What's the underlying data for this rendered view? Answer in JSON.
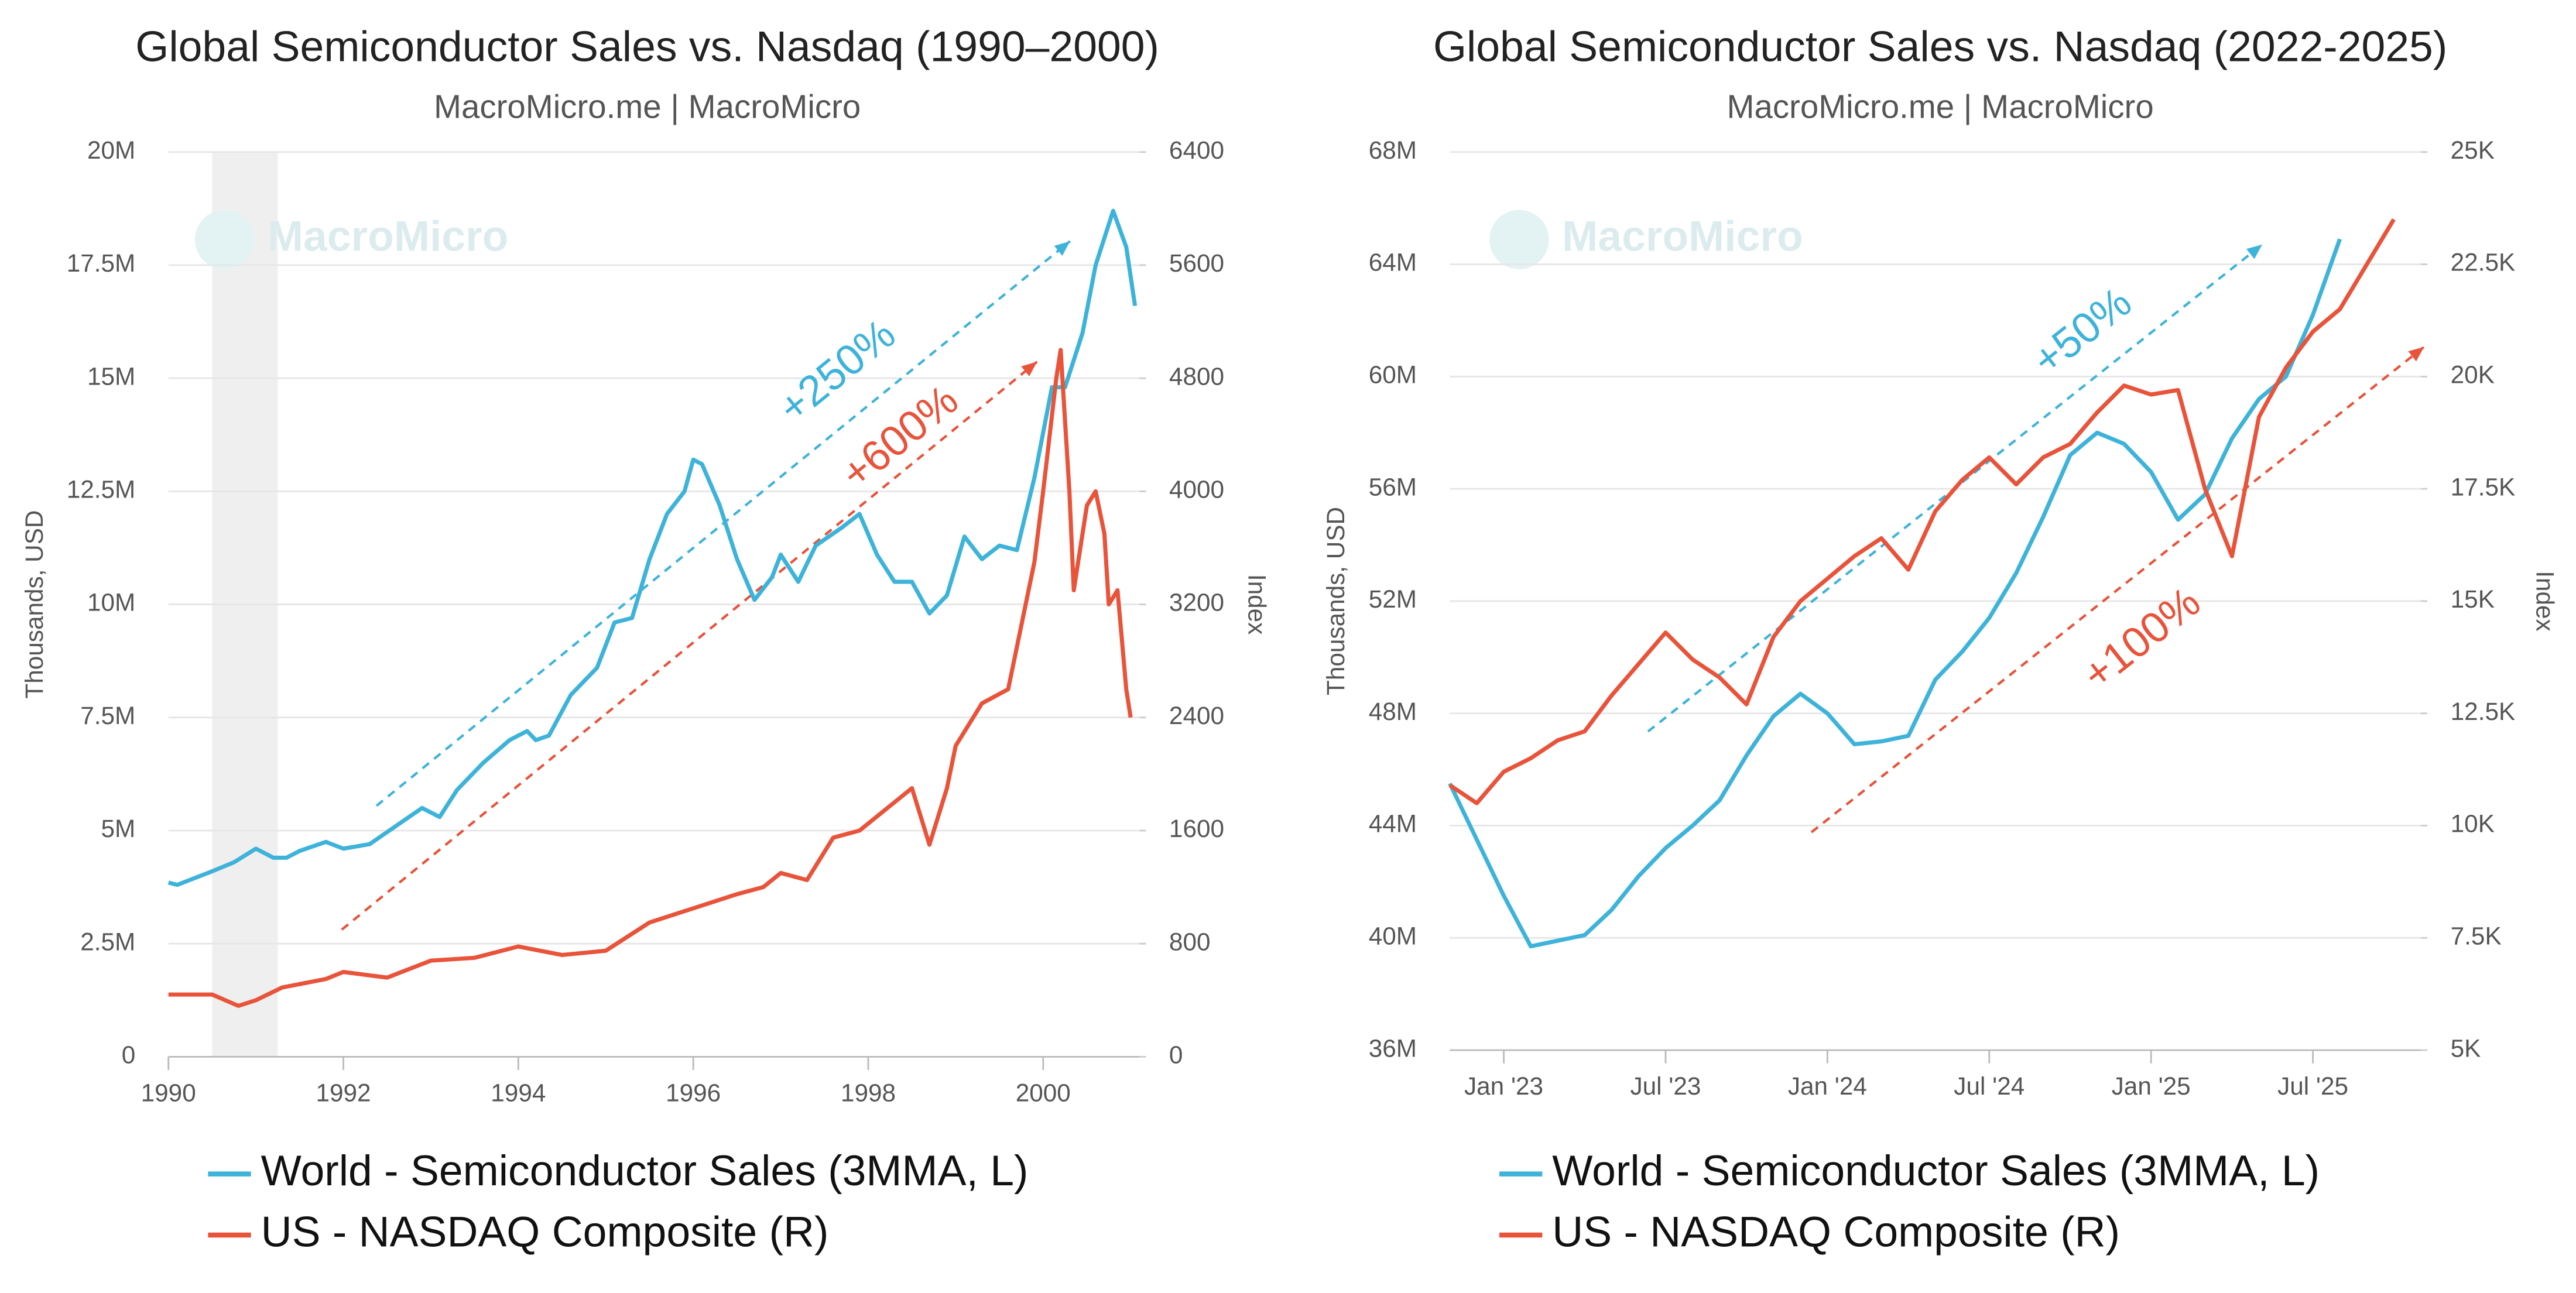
{
  "chart_data": [
    {
      "type": "line",
      "title": "Global Semiconductor Sales vs. Nasdaq (1990–2000)",
      "subtitle": "MacroMicro.me | MacroMicro",
      "watermark": "MacroMicro",
      "y_label": "Thousands, USD",
      "y2_label": "Index",
      "xlim": [
        1990,
        2001.1
      ],
      "xticks": [
        1990,
        1992,
        1994,
        1996,
        1998,
        2000
      ],
      "ylim": [
        0,
        20000000
      ],
      "yticks": [
        0,
        {
          "value": 2500000,
          "label": "2.5M"
        },
        {
          "value": 5000000,
          "label": "5M"
        },
        {
          "value": 7500000,
          "label": "7.5M"
        },
        {
          "value": 10000000,
          "label": "10M"
        },
        {
          "value": 12500000,
          "label": "12.5M"
        },
        {
          "value": 15000000,
          "label": "15M"
        },
        {
          "value": 17500000,
          "label": "17.5M"
        },
        {
          "value": 20000000,
          "label": "20M"
        }
      ],
      "y2lim": [
        0,
        6400
      ],
      "y2ticks": [
        0,
        800,
        1600,
        2400,
        3200,
        4000,
        4800,
        5600,
        6400
      ],
      "grid": true,
      "shaded_x": [
        1990.5,
        1991.25
      ],
      "series": [
        {
          "name": "World - Semiconductor Sales (3MMA, L)",
          "color": "#3eb3da",
          "x": [
            1990.0,
            1990.1,
            1990.5,
            1990.75,
            1991.0,
            1991.2,
            1991.35,
            1991.5,
            1991.8,
            1992.0,
            1992.3,
            1992.6,
            1992.9,
            1993.1,
            1993.3,
            1993.6,
            1993.9,
            1994.1,
            1994.2,
            1994.35,
            1994.6,
            1994.9,
            1995.1,
            1995.3,
            1995.5,
            1995.7,
            1995.9,
            1996.0,
            1996.1,
            1996.3,
            1996.5,
            1996.7,
            1996.9,
            1997.0,
            1997.2,
            1997.4,
            1997.7,
            1997.9,
            1998.1,
            1998.3,
            1998.5,
            1998.7,
            1998.9,
            1999.1,
            1999.3,
            1999.5,
            1999.7,
            1999.9,
            2000.0,
            2000.1,
            2000.25,
            2000.45,
            2000.6,
            2000.8,
            2000.95,
            2001.05
          ],
          "values": [
            3850000,
            3800000,
            4100000,
            4300000,
            4600000,
            4400000,
            4400000,
            4550000,
            4750000,
            4600000,
            4700000,
            5100000,
            5500000,
            5300000,
            5900000,
            6500000,
            7000000,
            7200000,
            7000000,
            7100000,
            8000000,
            8600000,
            9600000,
            9700000,
            11000000,
            12000000,
            12500000,
            13200000,
            13100000,
            12200000,
            11000000,
            10100000,
            10600000,
            11100000,
            10500000,
            11300000,
            11700000,
            12000000,
            11100000,
            10500000,
            10500000,
            9800000,
            10200000,
            11500000,
            11000000,
            11300000,
            11200000,
            12800000,
            13800000,
            14800000,
            14800000,
            16000000,
            17500000,
            18700000,
            17900000,
            16600000
          ]
        },
        {
          "name": "US - NASDAQ Composite (R)",
          "color": "#e8533a",
          "axis": "y2",
          "x": [
            1990.0,
            1990.5,
            1990.8,
            1991.0,
            1991.3,
            1991.8,
            1992.0,
            1992.5,
            1993.0,
            1993.5,
            1994.0,
            1994.5,
            1995.0,
            1995.5,
            1996.0,
            1996.5,
            1996.8,
            1997.0,
            1997.3,
            1997.6,
            1997.9,
            1998.2,
            1998.5,
            1998.7,
            1998.9,
            1999.0,
            1999.3,
            1999.6,
            1999.9,
            2000.0,
            2000.15,
            2000.2,
            2000.3,
            2000.35,
            2000.5,
            2000.6,
            2000.7,
            2000.75,
            2000.85,
            2000.95,
            2001.0
          ],
          "values": [
            440,
            440,
            360,
            400,
            490,
            550,
            600,
            560,
            680,
            700,
            780,
            720,
            750,
            950,
            1050,
            1150,
            1200,
            1300,
            1250,
            1550,
            1600,
            1750,
            1900,
            1500,
            1900,
            2200,
            2500,
            2600,
            3500,
            4000,
            4800,
            5000,
            4000,
            3300,
            3900,
            4000,
            3700,
            3200,
            3300,
            2600,
            2400
          ]
        }
      ],
      "annotations": [
        {
          "text": "+250%",
          "color": "#3eb3da"
        },
        {
          "text": "+600%",
          "color": "#e8533a"
        }
      ]
    },
    {
      "type": "line",
      "title": "Global Semiconductor Sales vs. Nasdaq (2022-2025)",
      "subtitle": "MacroMicro.me | MacroMicro",
      "watermark": "MacroMicro",
      "y_label": "Thousands, USD",
      "y2_label": "Index",
      "xlim": [
        "2022-11",
        "2025-11"
      ],
      "xticks": [
        {
          "value": "2023-01",
          "label": "Jan '23"
        },
        {
          "value": "2023-07",
          "label": "Jul '23"
        },
        {
          "value": "2024-01",
          "label": "Jan '24"
        },
        {
          "value": "2024-07",
          "label": "Jul '24"
        },
        {
          "value": "2025-01",
          "label": "Jan '25"
        },
        {
          "value": "2025-07",
          "label": "Jul '25"
        }
      ],
      "ylim": [
        36000000,
        68000000
      ],
      "yticks": [
        {
          "value": 36000000,
          "label": "36M"
        },
        {
          "value": 40000000,
          "label": "40M"
        },
        {
          "value": 44000000,
          "label": "44M"
        },
        {
          "value": 48000000,
          "label": "48M"
        },
        {
          "value": 52000000,
          "label": "52M"
        },
        {
          "value": 56000000,
          "label": "56M"
        },
        {
          "value": 60000000,
          "label": "60M"
        },
        {
          "value": 64000000,
          "label": "64M"
        },
        {
          "value": 68000000,
          "label": "68M"
        }
      ],
      "y2lim": [
        5000,
        25000
      ],
      "y2ticks": [
        {
          "value": 5000,
          "label": "5K"
        },
        {
          "value": 7500,
          "label": "7.5K"
        },
        {
          "value": 10000,
          "label": "10K"
        },
        {
          "value": 12500,
          "label": "12.5K"
        },
        {
          "value": 15000,
          "label": "15K"
        },
        {
          "value": 17500,
          "label": "17.5K"
        },
        {
          "value": 20000,
          "label": "20K"
        },
        {
          "value": 22500,
          "label": "22.5K"
        },
        {
          "value": 25000,
          "label": "25K"
        }
      ],
      "grid": true,
      "series": [
        {
          "name": "World - Semiconductor Sales (3MMA, L)",
          "color": "#3eb3da",
          "x": [
            "2022-11",
            "2022-12",
            "2023-01",
            "2023-02",
            "2023-03",
            "2023-04",
            "2023-05",
            "2023-06",
            "2023-07",
            "2023-08",
            "2023-09",
            "2023-10",
            "2023-11",
            "2023-12",
            "2024-01",
            "2024-02",
            "2024-03",
            "2024-04",
            "2024-05",
            "2024-06",
            "2024-07",
            "2024-08",
            "2024-09",
            "2024-10",
            "2024-11",
            "2024-12",
            "2025-01",
            "2025-02",
            "2025-03",
            "2025-04",
            "2025-05",
            "2025-06",
            "2025-07",
            "2025-08"
          ],
          "values": [
            45500000,
            43500000,
            41500000,
            39700000,
            39900000,
            40100000,
            41000000,
            42200000,
            43200000,
            44000000,
            44900000,
            46500000,
            47900000,
            48700000,
            48000000,
            46900000,
            47000000,
            47200000,
            49200000,
            50200000,
            51400000,
            53000000,
            55000000,
            57200000,
            58000000,
            57600000,
            56600000,
            54900000,
            55800000,
            57800000,
            59200000,
            60000000,
            62200000,
            64900000
          ]
        },
        {
          "name": "US - NASDAQ Composite (R)",
          "color": "#e8533a",
          "axis": "y2",
          "x": [
            "2022-11",
            "2022-12",
            "2023-01",
            "2023-02",
            "2023-03",
            "2023-04",
            "2023-05",
            "2023-06",
            "2023-07",
            "2023-08",
            "2023-09",
            "2023-10",
            "2023-11",
            "2023-12",
            "2024-01",
            "2024-02",
            "2024-03",
            "2024-04",
            "2024-05",
            "2024-06",
            "2024-07",
            "2024-08",
            "2024-09",
            "2024-10",
            "2024-11",
            "2024-12",
            "2025-01",
            "2025-02",
            "2025-03",
            "2025-04",
            "2025-05",
            "2025-06",
            "2025-07",
            "2025-08",
            "2025-09",
            "2025-10"
          ],
          "values": [
            10900,
            10500,
            11200,
            11500,
            11900,
            12100,
            12900,
            13600,
            14300,
            13700,
            13300,
            12700,
            14200,
            15000,
            15500,
            16000,
            16400,
            15700,
            17000,
            17700,
            18200,
            17600,
            18200,
            18500,
            19200,
            19800,
            19600,
            19700,
            17500,
            16000,
            19100,
            20200,
            21000,
            21500,
            22500,
            23500
          ]
        }
      ],
      "annotations": [
        {
          "text": "+50%",
          "color": "#3eb3da"
        },
        {
          "text": "+100%",
          "color": "#e8533a"
        }
      ]
    }
  ]
}
